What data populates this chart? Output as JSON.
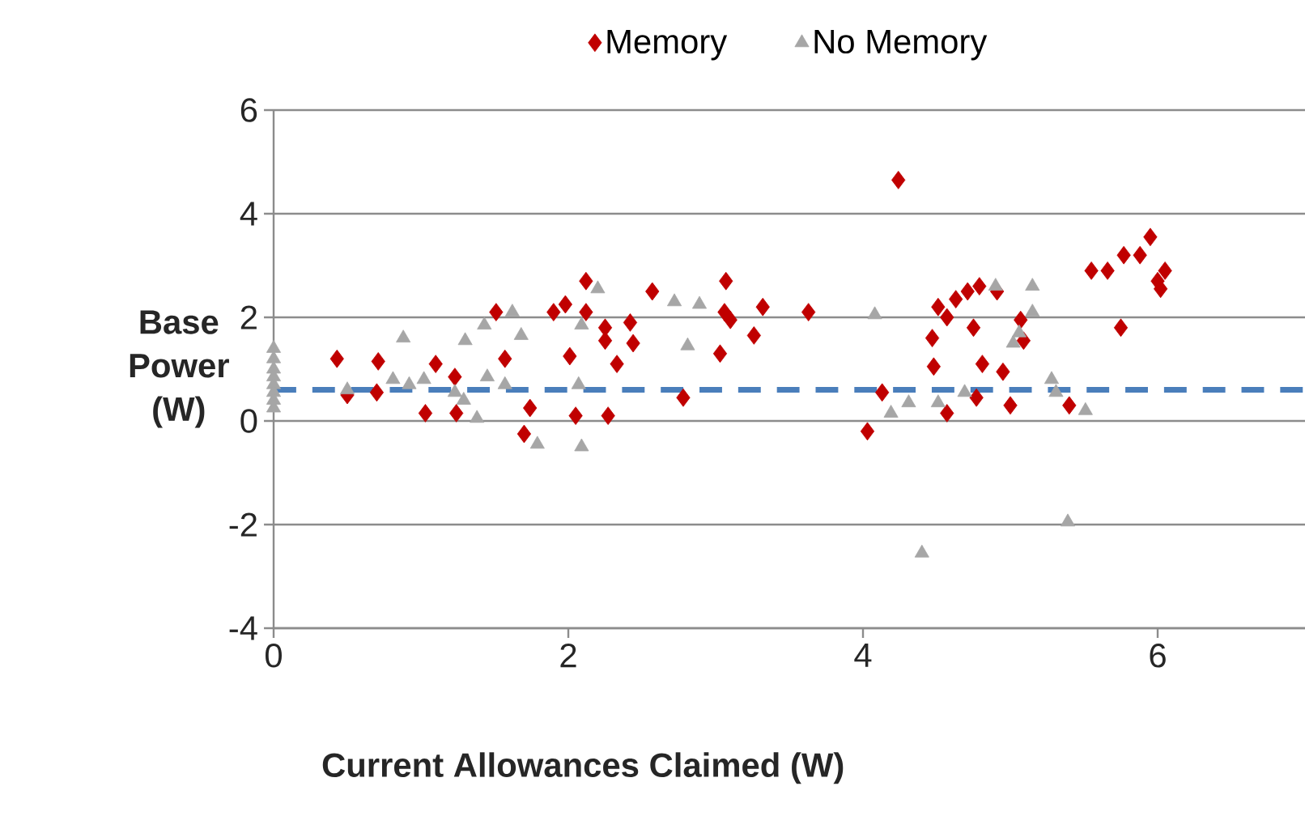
{
  "chart_data": {
    "type": "scatter",
    "xlabel": "Current Allowances Claimed (W)",
    "ylabel": "Base Power (W)",
    "xlim": [
      0,
      7
    ],
    "xticks": [
      0,
      2,
      4,
      6
    ],
    "ylim": [
      -4,
      6
    ],
    "yticks": [
      -4,
      -2,
      0,
      2,
      4,
      6
    ],
    "grid": "y",
    "legend": "top",
    "ref_lines": [
      {
        "axis": "y",
        "value": 0.6,
        "color": "#4a7ebb",
        "line_style": "dashed"
      }
    ],
    "series": [
      {
        "name": "Memory",
        "color": "#c00000",
        "marker": "diamond",
        "x": [
          0.43,
          0.5,
          0.71,
          0.7,
          1.1,
          1.23,
          1.57,
          1.24,
          1.03,
          1.74,
          1.7,
          2.01,
          2.05,
          1.9,
          1.98,
          1.51,
          2.12,
          2.57,
          3.07,
          3.32,
          3.63,
          3.06,
          3.1,
          3.26,
          3.03,
          2.78,
          2.42,
          2.44,
          2.33,
          2.25,
          2.25,
          2.12,
          2.27,
          4.03,
          4.13,
          4.47,
          4.48,
          4.57,
          4.51,
          4.57,
          4.63,
          4.71,
          4.79,
          4.91,
          4.75,
          4.81,
          4.95,
          5.0,
          5.07,
          5.09,
          4.77,
          5.4,
          5.75,
          5.55,
          5.66,
          5.77,
          5.88,
          5.95,
          6.0,
          4.24,
          6.05,
          6.02
        ],
        "values": [
          1.2,
          0.5,
          1.15,
          0.55,
          1.1,
          0.85,
          1.2,
          0.15,
          0.15,
          0.25,
          -0.25,
          1.25,
          0.1,
          2.1,
          2.25,
          2.1,
          2.7,
          2.5,
          2.7,
          2.2,
          2.1,
          2.1,
          1.95,
          1.65,
          1.3,
          0.45,
          1.9,
          1.5,
          1.1,
          1.8,
          1.55,
          2.1,
          0.1,
          -0.2,
          0.55,
          1.6,
          1.05,
          0.15,
          2.2,
          2.0,
          2.35,
          2.5,
          2.6,
          2.5,
          1.8,
          1.1,
          0.95,
          0.3,
          1.95,
          1.55,
          0.45,
          0.3,
          1.8,
          2.9,
          2.9,
          3.2,
          3.2,
          3.55,
          2.7,
          4.65,
          2.9,
          2.55
        ]
      },
      {
        "name": "No Memory",
        "color": "#a6a6a6",
        "marker": "triangle",
        "x": [
          0,
          0,
          0,
          0,
          0,
          0,
          0,
          0,
          0.5,
          0.88,
          0.81,
          0.92,
          1.02,
          1.23,
          1.29,
          1.38,
          1.3,
          1.43,
          1.57,
          1.68,
          1.79,
          2.07,
          2.09,
          1.62,
          1.45,
          2.2,
          2.72,
          2.89,
          2.81,
          2.09,
          4.08,
          4.19,
          4.31,
          4.51,
          4.69,
          4.9,
          5.02,
          5.15,
          5.15,
          5.28,
          5.31,
          5.51,
          5.39,
          4.4,
          5.06
        ],
        "values": [
          1.4,
          1.2,
          1.0,
          0.85,
          0.7,
          0.55,
          0.4,
          0.25,
          0.6,
          1.6,
          0.8,
          0.7,
          0.8,
          0.55,
          0.4,
          0.05,
          1.55,
          1.85,
          0.7,
          1.65,
          -0.45,
          0.7,
          -0.5,
          2.1,
          0.85,
          2.55,
          2.3,
          2.25,
          1.45,
          1.85,
          2.05,
          0.15,
          0.35,
          0.35,
          0.55,
          2.6,
          1.5,
          2.6,
          2.1,
          0.8,
          0.55,
          0.2,
          -1.95,
          -2.55,
          1.7
        ]
      }
    ]
  }
}
